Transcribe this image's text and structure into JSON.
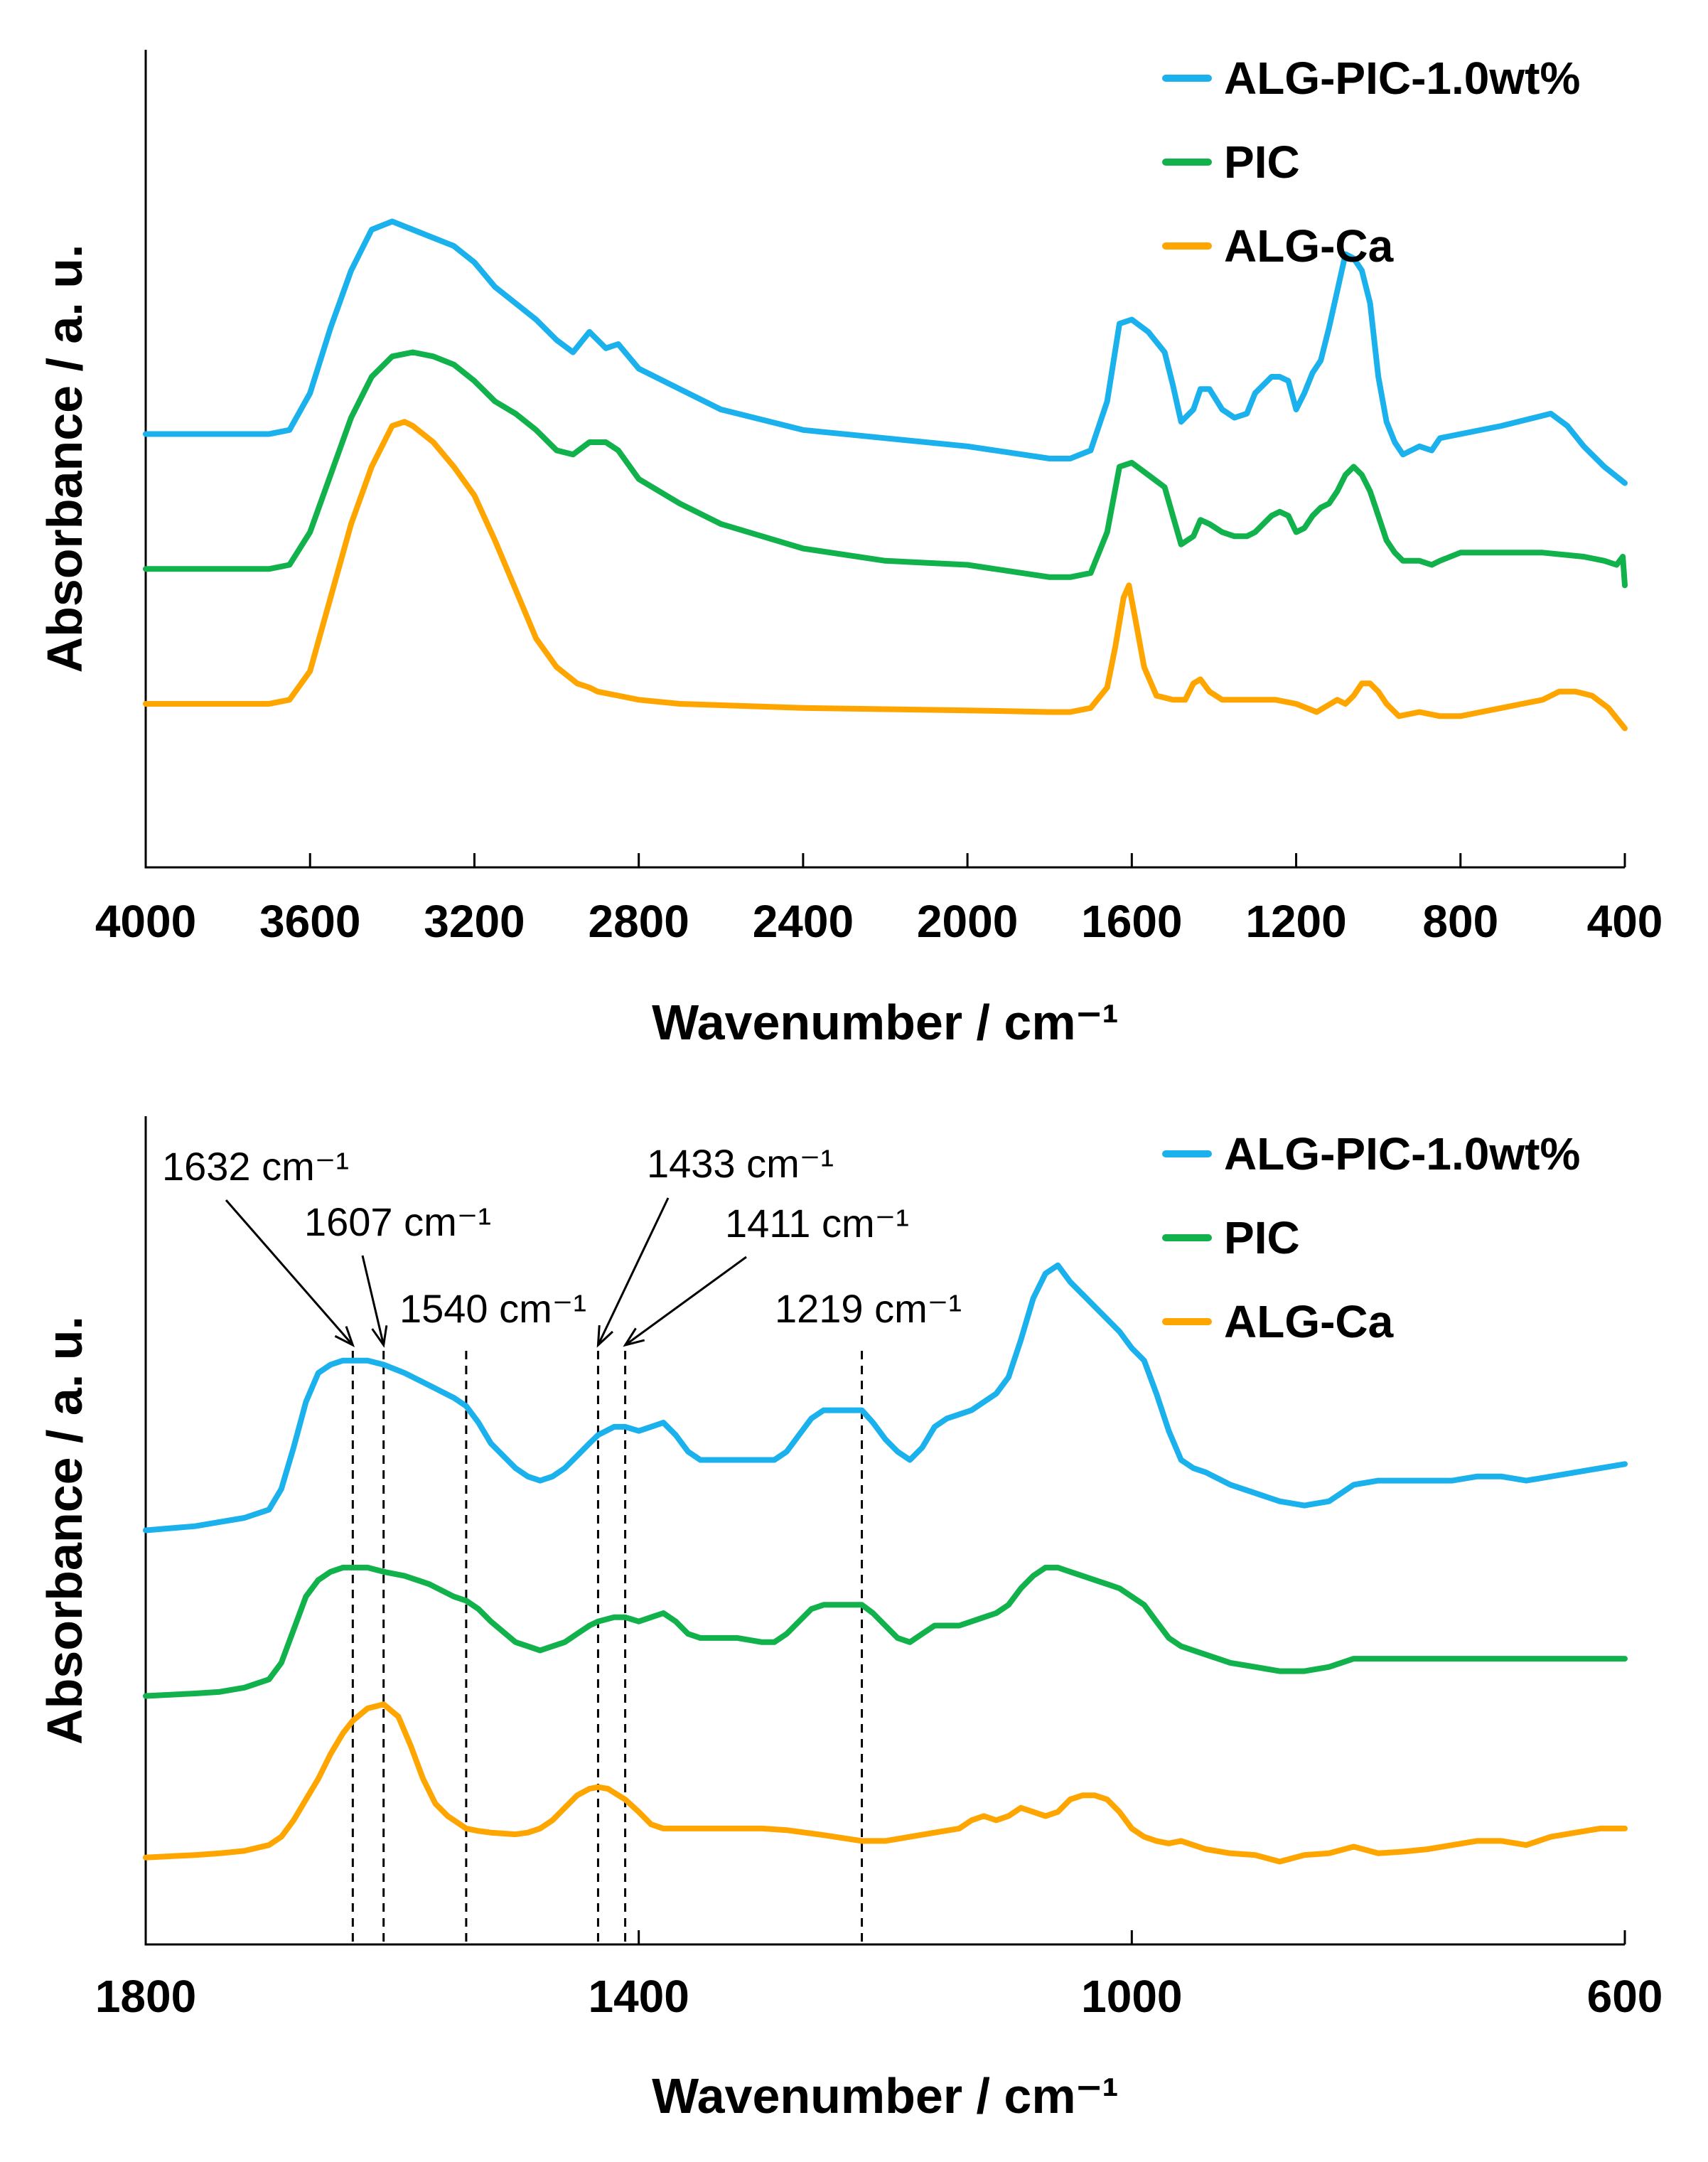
{
  "colors": {
    "ALG-PIC-1.0wt%": "#1ab1ec",
    "PIC": "#11b14c",
    "ALG-Ca": "#ffa500",
    "axis": "#000000"
  },
  "chart_data": [
    {
      "type": "line",
      "title": "",
      "xlabel": "Wavenumber / cm⁻¹",
      "ylabel": "Absorbance / a. u.",
      "xlim": [
        4000,
        400
      ],
      "ylim": [
        0,
        1
      ],
      "x_reversed": true,
      "xticks": [
        4000,
        3600,
        3200,
        2800,
        2400,
        2000,
        1600,
        1200,
        800,
        400
      ],
      "y_ticklabels_shown": false,
      "legend": [
        "ALG-PIC-1.0wt%",
        "PIC",
        "ALG-Ca"
      ],
      "legend_position": "top-right",
      "series": [
        {
          "name": "ALG-PIC-1.0wt%",
          "x": [
            4000,
            3800,
            3700,
            3650,
            3600,
            3550,
            3500,
            3450,
            3400,
            3350,
            3300,
            3250,
            3200,
            3150,
            3100,
            3050,
            3000,
            2960,
            2920,
            2880,
            2850,
            2800,
            2700,
            2600,
            2400,
            2200,
            2000,
            1800,
            1750,
            1700,
            1660,
            1630,
            1600,
            1560,
            1520,
            1500,
            1480,
            1450,
            1433,
            1411,
            1380,
            1350,
            1320,
            1300,
            1260,
            1240,
            1219,
            1200,
            1180,
            1160,
            1140,
            1120,
            1100,
            1080,
            1060,
            1040,
            1020,
            1000,
            980,
            960,
            940,
            900,
            870,
            850,
            800,
            700,
            620,
            580,
            540,
            500,
            450,
            400
          ],
          "values": [
            0.53,
            0.53,
            0.53,
            0.535,
            0.58,
            0.66,
            0.73,
            0.78,
            0.79,
            0.78,
            0.77,
            0.76,
            0.74,
            0.71,
            0.69,
            0.67,
            0.645,
            0.63,
            0.655,
            0.635,
            0.64,
            0.61,
            0.585,
            0.56,
            0.535,
            0.525,
            0.515,
            0.5,
            0.5,
            0.51,
            0.57,
            0.665,
            0.67,
            0.655,
            0.63,
            0.59,
            0.545,
            0.56,
            0.585,
            0.585,
            0.56,
            0.55,
            0.555,
            0.58,
            0.6,
            0.6,
            0.595,
            0.56,
            0.58,
            0.605,
            0.62,
            0.66,
            0.705,
            0.75,
            0.745,
            0.73,
            0.69,
            0.6,
            0.545,
            0.52,
            0.505,
            0.515,
            0.51,
            0.525,
            0.53,
            0.54,
            0.55,
            0.555,
            0.54,
            0.515,
            0.49,
            0.47
          ]
        },
        {
          "name": "PIC",
          "x": [
            4000,
            3800,
            3700,
            3650,
            3600,
            3550,
            3500,
            3450,
            3400,
            3350,
            3300,
            3250,
            3200,
            3150,
            3100,
            3050,
            3000,
            2960,
            2920,
            2880,
            2850,
            2800,
            2700,
            2600,
            2400,
            2200,
            2000,
            1800,
            1750,
            1700,
            1660,
            1630,
            1600,
            1560,
            1520,
            1500,
            1480,
            1450,
            1433,
            1411,
            1380,
            1350,
            1320,
            1300,
            1260,
            1240,
            1219,
            1200,
            1180,
            1160,
            1140,
            1120,
            1100,
            1080,
            1060,
            1040,
            1020,
            1000,
            980,
            960,
            940,
            900,
            870,
            850,
            800,
            700,
            600,
            500,
            450,
            420,
            405,
            400
          ],
          "values": [
            0.365,
            0.365,
            0.365,
            0.37,
            0.41,
            0.48,
            0.55,
            0.6,
            0.625,
            0.63,
            0.625,
            0.615,
            0.595,
            0.57,
            0.555,
            0.535,
            0.51,
            0.505,
            0.52,
            0.52,
            0.51,
            0.475,
            0.445,
            0.42,
            0.39,
            0.375,
            0.37,
            0.355,
            0.355,
            0.36,
            0.41,
            0.49,
            0.495,
            0.48,
            0.465,
            0.43,
            0.395,
            0.405,
            0.425,
            0.42,
            0.41,
            0.405,
            0.405,
            0.41,
            0.43,
            0.435,
            0.43,
            0.41,
            0.415,
            0.43,
            0.44,
            0.445,
            0.46,
            0.48,
            0.49,
            0.48,
            0.46,
            0.43,
            0.4,
            0.385,
            0.375,
            0.375,
            0.37,
            0.375,
            0.385,
            0.385,
            0.385,
            0.38,
            0.375,
            0.37,
            0.38,
            0.345
          ]
        },
        {
          "name": "ALG-Ca",
          "x": [
            4000,
            3800,
            3700,
            3650,
            3600,
            3550,
            3500,
            3450,
            3400,
            3370,
            3350,
            3300,
            3250,
            3200,
            3150,
            3100,
            3050,
            3000,
            2950,
            2920,
            2900,
            2850,
            2800,
            2700,
            2400,
            2000,
            1800,
            1750,
            1700,
            1660,
            1640,
            1620,
            1607,
            1590,
            1570,
            1540,
            1500,
            1470,
            1450,
            1433,
            1411,
            1380,
            1350,
            1300,
            1250,
            1200,
            1150,
            1100,
            1080,
            1060,
            1040,
            1020,
            1000,
            980,
            950,
            900,
            850,
            800,
            750,
            700,
            650,
            600,
            560,
            520,
            480,
            440,
            400
          ],
          "values": [
            0.2,
            0.2,
            0.2,
            0.205,
            0.24,
            0.33,
            0.42,
            0.49,
            0.54,
            0.545,
            0.54,
            0.52,
            0.49,
            0.455,
            0.4,
            0.34,
            0.28,
            0.245,
            0.225,
            0.22,
            0.215,
            0.21,
            0.205,
            0.2,
            0.195,
            0.192,
            0.19,
            0.19,
            0.195,
            0.22,
            0.27,
            0.33,
            0.345,
            0.3,
            0.245,
            0.21,
            0.205,
            0.205,
            0.225,
            0.23,
            0.215,
            0.205,
            0.205,
            0.205,
            0.205,
            0.2,
            0.19,
            0.205,
            0.2,
            0.21,
            0.225,
            0.225,
            0.215,
            0.2,
            0.185,
            0.19,
            0.185,
            0.185,
            0.19,
            0.195,
            0.2,
            0.205,
            0.215,
            0.215,
            0.21,
            0.195,
            0.17
          ]
        }
      ]
    },
    {
      "type": "line",
      "title": "",
      "xlabel": "Wavenumber / cm⁻¹",
      "ylabel": "Absorbance / a. u.",
      "xlim": [
        1800,
        600
      ],
      "ylim": [
        0,
        1
      ],
      "x_reversed": true,
      "xticks": [
        1800,
        1400,
        1000,
        600
      ],
      "y_ticklabels_shown": false,
      "legend": [
        "ALG-PIC-1.0wt%",
        "PIC",
        "ALG-Ca"
      ],
      "legend_position": "top-right",
      "reference_lines": [
        {
          "x": 1632,
          "label": "1632 cm⁻¹"
        },
        {
          "x": 1607,
          "label": "1607 cm⁻¹"
        },
        {
          "x": 1540,
          "label": "1540 cm⁻¹"
        },
        {
          "x": 1433,
          "label": "1433 cm⁻¹"
        },
        {
          "x": 1411,
          "label": "1411 cm⁻¹"
        },
        {
          "x": 1219,
          "label": "1219 cm⁻¹"
        }
      ],
      "series": [
        {
          "name": "ALG-PIC-1.0wt%",
          "x": [
            1800,
            1760,
            1740,
            1720,
            1700,
            1690,
            1680,
            1670,
            1660,
            1650,
            1640,
            1632,
            1620,
            1607,
            1590,
            1570,
            1550,
            1540,
            1530,
            1520,
            1500,
            1490,
            1480,
            1470,
            1460,
            1450,
            1440,
            1433,
            1420,
            1411,
            1400,
            1390,
            1380,
            1370,
            1360,
            1350,
            1340,
            1320,
            1300,
            1290,
            1280,
            1270,
            1260,
            1250,
            1240,
            1230,
            1219,
            1210,
            1200,
            1190,
            1180,
            1170,
            1160,
            1150,
            1140,
            1130,
            1120,
            1110,
            1100,
            1090,
            1080,
            1070,
            1060,
            1050,
            1040,
            1030,
            1020,
            1010,
            1000,
            990,
            980,
            970,
            960,
            950,
            940,
            920,
            900,
            880,
            860,
            840,
            820,
            800,
            780,
            760,
            740,
            720,
            700,
            680,
            660,
            640,
            620,
            600
          ],
          "values": [
            0.5,
            0.505,
            0.51,
            0.515,
            0.525,
            0.55,
            0.6,
            0.655,
            0.69,
            0.7,
            0.705,
            0.705,
            0.705,
            0.7,
            0.69,
            0.675,
            0.66,
            0.65,
            0.63,
            0.605,
            0.575,
            0.565,
            0.56,
            0.565,
            0.575,
            0.59,
            0.605,
            0.615,
            0.625,
            0.625,
            0.62,
            0.625,
            0.63,
            0.615,
            0.595,
            0.585,
            0.585,
            0.585,
            0.585,
            0.585,
            0.595,
            0.615,
            0.635,
            0.645,
            0.645,
            0.645,
            0.645,
            0.63,
            0.61,
            0.595,
            0.585,
            0.6,
            0.625,
            0.635,
            0.64,
            0.645,
            0.655,
            0.665,
            0.685,
            0.73,
            0.78,
            0.81,
            0.82,
            0.8,
            0.785,
            0.77,
            0.755,
            0.74,
            0.72,
            0.705,
            0.665,
            0.62,
            0.585,
            0.575,
            0.57,
            0.555,
            0.545,
            0.535,
            0.53,
            0.535,
            0.555,
            0.56,
            0.56,
            0.56,
            0.56,
            0.565,
            0.565,
            0.56,
            0.565,
            0.57,
            0.575,
            0.58
          ]
        },
        {
          "name": "PIC",
          "x": [
            1800,
            1760,
            1740,
            1720,
            1700,
            1690,
            1680,
            1670,
            1660,
            1650,
            1640,
            1632,
            1620,
            1607,
            1590,
            1570,
            1550,
            1540,
            1530,
            1520,
            1500,
            1490,
            1480,
            1470,
            1460,
            1450,
            1440,
            1433,
            1420,
            1411,
            1400,
            1390,
            1380,
            1370,
            1360,
            1350,
            1340,
            1320,
            1300,
            1290,
            1280,
            1270,
            1260,
            1250,
            1240,
            1230,
            1219,
            1210,
            1200,
            1190,
            1180,
            1170,
            1160,
            1150,
            1140,
            1130,
            1120,
            1110,
            1100,
            1090,
            1080,
            1070,
            1060,
            1050,
            1040,
            1030,
            1020,
            1010,
            1000,
            990,
            980,
            970,
            960,
            950,
            940,
            920,
            900,
            880,
            860,
            840,
            820,
            800,
            780,
            760,
            740,
            720,
            700,
            680,
            660,
            640,
            620,
            600
          ],
          "values": [
            0.3,
            0.303,
            0.305,
            0.31,
            0.32,
            0.34,
            0.38,
            0.42,
            0.44,
            0.45,
            0.455,
            0.455,
            0.455,
            0.45,
            0.445,
            0.435,
            0.42,
            0.415,
            0.405,
            0.39,
            0.365,
            0.36,
            0.355,
            0.36,
            0.365,
            0.375,
            0.385,
            0.39,
            0.395,
            0.395,
            0.39,
            0.395,
            0.4,
            0.39,
            0.375,
            0.37,
            0.37,
            0.37,
            0.365,
            0.365,
            0.375,
            0.39,
            0.405,
            0.41,
            0.41,
            0.41,
            0.41,
            0.4,
            0.385,
            0.37,
            0.365,
            0.375,
            0.385,
            0.385,
            0.385,
            0.39,
            0.395,
            0.4,
            0.41,
            0.43,
            0.445,
            0.455,
            0.455,
            0.45,
            0.445,
            0.44,
            0.435,
            0.43,
            0.42,
            0.41,
            0.39,
            0.37,
            0.36,
            0.355,
            0.35,
            0.34,
            0.335,
            0.33,
            0.33,
            0.335,
            0.345,
            0.345,
            0.345,
            0.345,
            0.345,
            0.345,
            0.345,
            0.345,
            0.345,
            0.345,
            0.345,
            0.345
          ]
        },
        {
          "name": "ALG-Ca",
          "x": [
            1800,
            1760,
            1740,
            1720,
            1700,
            1690,
            1680,
            1670,
            1660,
            1650,
            1640,
            1632,
            1620,
            1607,
            1595,
            1585,
            1575,
            1565,
            1555,
            1545,
            1540,
            1530,
            1520,
            1500,
            1490,
            1480,
            1470,
            1460,
            1450,
            1440,
            1433,
            1425,
            1411,
            1400,
            1390,
            1380,
            1370,
            1350,
            1320,
            1300,
            1280,
            1250,
            1219,
            1200,
            1180,
            1160,
            1140,
            1130,
            1120,
            1110,
            1100,
            1090,
            1080,
            1070,
            1060,
            1050,
            1040,
            1030,
            1020,
            1010,
            1000,
            990,
            980,
            970,
            960,
            950,
            940,
            920,
            900,
            880,
            860,
            840,
            820,
            800,
            780,
            760,
            740,
            720,
            700,
            680,
            660,
            640,
            620,
            600
          ],
          "values": [
            0.105,
            0.108,
            0.11,
            0.113,
            0.12,
            0.13,
            0.15,
            0.175,
            0.2,
            0.23,
            0.255,
            0.27,
            0.285,
            0.29,
            0.275,
            0.24,
            0.2,
            0.17,
            0.155,
            0.145,
            0.14,
            0.137,
            0.135,
            0.133,
            0.135,
            0.14,
            0.15,
            0.165,
            0.18,
            0.188,
            0.19,
            0.188,
            0.175,
            0.16,
            0.145,
            0.14,
            0.14,
            0.14,
            0.14,
            0.14,
            0.138,
            0.132,
            0.125,
            0.125,
            0.13,
            0.135,
            0.14,
            0.15,
            0.155,
            0.15,
            0.155,
            0.165,
            0.16,
            0.155,
            0.16,
            0.175,
            0.18,
            0.18,
            0.175,
            0.16,
            0.14,
            0.13,
            0.125,
            0.122,
            0.125,
            0.12,
            0.115,
            0.11,
            0.108,
            0.1,
            0.108,
            0.11,
            0.118,
            0.11,
            0.112,
            0.115,
            0.12,
            0.125,
            0.125,
            0.12,
            0.13,
            0.135,
            0.14,
            0.14
          ]
        }
      ]
    }
  ]
}
